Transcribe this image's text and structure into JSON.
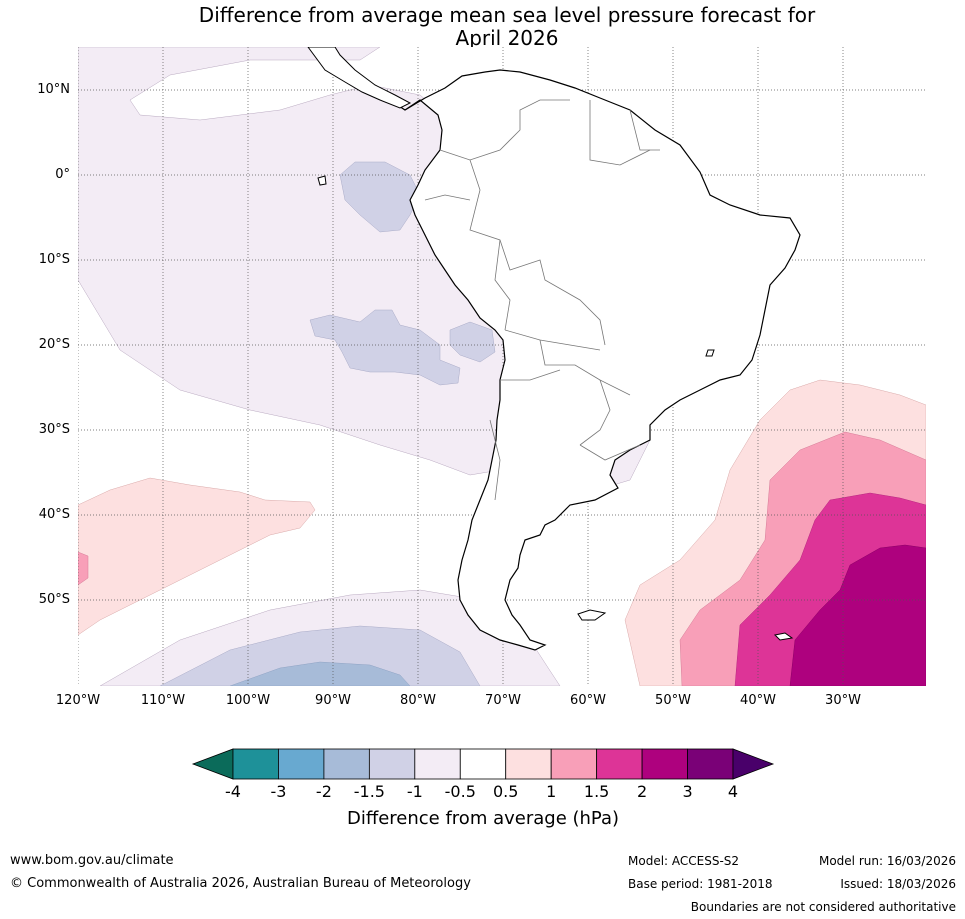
{
  "title_line1": "Difference from average mean sea level pressure forecast for",
  "title_line2": "April 2026",
  "lat_labels": [
    "10°N",
    "0°",
    "10°S",
    "20°S",
    "30°S",
    "40°S",
    "50°S"
  ],
  "lon_labels": [
    "120°W",
    "110°W",
    "100°W",
    "90°W",
    "80°W",
    "70°W",
    "60°W",
    "50°W",
    "40°W",
    "30°W"
  ],
  "colorbar": {
    "label": "Difference from average (hPa)",
    "ticks": [
      "-4",
      "-3",
      "-2",
      "-1.5",
      "-1",
      "-0.5",
      "0.5",
      "1",
      "1.5",
      "2",
      "3",
      "4"
    ],
    "colors": [
      "#0b6b5a",
      "#1e9199",
      "#68a9d0",
      "#a7bbd8",
      "#d0d1e6",
      "#f3ecf5",
      "#ffffff",
      "#fde0e0",
      "#f89fb8",
      "#dd3497",
      "#ae017e",
      "#7a0177",
      "#49006a"
    ]
  },
  "footer": {
    "website": "www.bom.gov.au/climate",
    "copyright": "© Commonwealth of Australia 2026, Australian Bureau of Meteorology",
    "model": "Model: ACCESS-S2",
    "base_period": "Base period: 1981-2018",
    "model_run": "Model run: 16/03/2026",
    "issued": "Issued: 18/03/2026",
    "boundaries": "Boundaries are not considered authoritative"
  }
}
